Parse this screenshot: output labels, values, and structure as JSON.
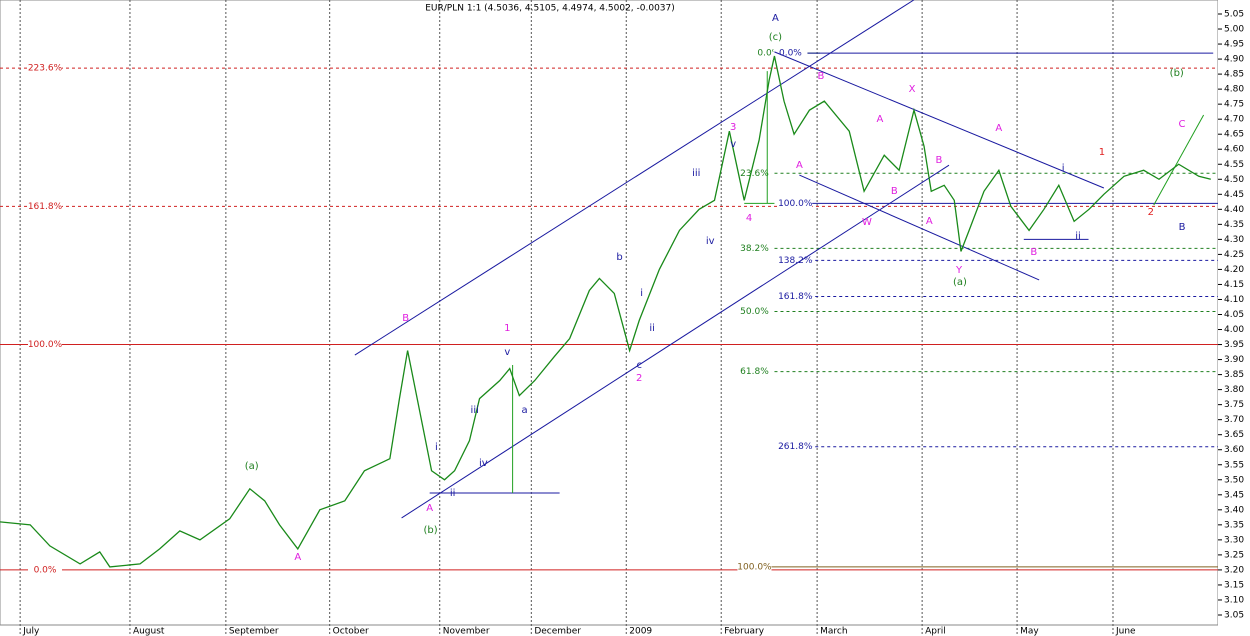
{
  "chart_data": {
    "type": "line",
    "title": "EUR/PLN 1:1 (4.5036, 4.5105, 4.4974, 4.5002, -0.0037)",
    "xlim": [
      0,
      254
    ],
    "ylim": [
      3.05,
      5.05
    ],
    "xticks": [
      {
        "value": 4.2,
        "label": "July"
      },
      {
        "value": 27.1,
        "label": "August"
      },
      {
        "value": 47.1,
        "label": "September"
      },
      {
        "value": 68.75,
        "label": "October"
      },
      {
        "value": 91.7,
        "label": "November"
      },
      {
        "value": 110.8,
        "label": "December"
      },
      {
        "value": 130.6,
        "label": "2009"
      },
      {
        "value": 150.4,
        "label": "February"
      },
      {
        "value": 170.4,
        "label": "March"
      },
      {
        "value": 192.3,
        "label": "April"
      },
      {
        "value": 212.1,
        "label": "May"
      },
      {
        "value": 232.1,
        "label": "June"
      }
    ],
    "yticks": [
      {
        "value": 3.05,
        "label": "3.05"
      },
      {
        "value": 3.1,
        "label": "3.10"
      },
      {
        "value": 3.15,
        "label": "3.15"
      },
      {
        "value": 3.2,
        "label": "3.20"
      },
      {
        "value": 3.25,
        "label": "3.25"
      },
      {
        "value": 3.3,
        "label": "3.30"
      },
      {
        "value": 3.35,
        "label": "3.35"
      },
      {
        "value": 3.4,
        "label": "3.40"
      },
      {
        "value": 3.45,
        "label": "3.45"
      },
      {
        "value": 3.5,
        "label": "3.50"
      },
      {
        "value": 3.55,
        "label": "3.55"
      },
      {
        "value": 3.6,
        "label": "3.60"
      },
      {
        "value": 3.65,
        "label": "3.65"
      },
      {
        "value": 3.7,
        "label": "3.70"
      },
      {
        "value": 3.75,
        "label": "3.75"
      },
      {
        "value": 3.8,
        "label": "3.80"
      },
      {
        "value": 3.85,
        "label": "3.85"
      },
      {
        "value": 3.9,
        "label": "3.90"
      },
      {
        "value": 3.95,
        "label": "3.95"
      },
      {
        "value": 4.0,
        "label": "4.00"
      },
      {
        "value": 4.05,
        "label": "4.05"
      },
      {
        "value": 4.1,
        "label": "4.10"
      },
      {
        "value": 4.15,
        "label": "4.15"
      },
      {
        "value": 4.2,
        "label": "4.20"
      },
      {
        "value": 4.25,
        "label": "4.25"
      },
      {
        "value": 4.3,
        "label": "4.30"
      },
      {
        "value": 4.35,
        "label": "4.35"
      },
      {
        "value": 4.4,
        "label": "4.40"
      },
      {
        "value": 4.45,
        "label": "4.45"
      },
      {
        "value": 4.5,
        "label": "4.50"
      },
      {
        "value": 4.55,
        "label": "4.55"
      },
      {
        "value": 4.6,
        "label": "4.60"
      },
      {
        "value": 4.65,
        "label": "4.65"
      },
      {
        "value": 4.7,
        "label": "4.70"
      },
      {
        "value": 4.75,
        "label": "4.75"
      },
      {
        "value": 4.8,
        "label": "4.80"
      },
      {
        "value": 4.85,
        "label": "4.85"
      },
      {
        "value": 4.9,
        "label": "4.90"
      },
      {
        "value": 4.95,
        "label": "4.95"
      },
      {
        "value": 5.0,
        "label": "5.00"
      },
      {
        "value": 5.05,
        "label": "5.05"
      }
    ],
    "x": [
      0,
      6.3,
      10.4,
      16.7,
      20.8,
      22.9,
      29.2,
      33.3,
      37.5,
      41.7,
      47.9,
      52.1,
      55.2,
      58.3,
      62.1,
      66.7,
      71.9,
      76,
      81.3,
      83.3,
      85,
      87.5,
      90,
      92.7,
      94.8,
      97.9,
      100,
      104.2,
      106.3,
      108.3,
      111.5,
      115.6,
      118.8,
      122.9,
      125,
      128.1,
      131.3,
      133.3,
      137.5,
      141.7,
      145.8,
      149,
      152.1,
      155.2,
      158.3,
      160.4,
      161.5,
      163.5,
      165.6,
      168.8,
      171.9,
      177.1,
      180.2,
      184.4,
      187.5,
      190.6,
      192.7,
      194.2,
      196.9,
      199,
      200.4,
      202.1,
      205.2,
      208.3,
      210.8,
      214.6,
      217.7,
      220.8,
      224,
      227.1,
      230.2,
      234.4,
      238.5,
      241.7,
      245.8,
      250,
      252.5
    ],
    "series": [
      {
        "color": "#1a8a1a",
        "values": [
          3.36,
          3.35,
          3.28,
          3.22,
          3.26,
          3.21,
          3.22,
          3.27,
          3.33,
          3.3,
          3.37,
          3.47,
          3.43,
          3.35,
          3.27,
          3.4,
          3.43,
          3.53,
          3.57,
          3.77,
          3.93,
          3.73,
          3.53,
          3.5,
          3.53,
          3.63,
          3.77,
          3.83,
          3.87,
          3.78,
          3.83,
          3.91,
          3.97,
          4.13,
          4.17,
          4.12,
          3.93,
          4.03,
          4.2,
          4.33,
          4.4,
          4.43,
          4.66,
          4.43,
          4.63,
          4.83,
          4.91,
          4.76,
          4.65,
          4.73,
          4.76,
          4.66,
          4.46,
          4.58,
          4.53,
          4.73,
          4.61,
          4.46,
          4.48,
          4.43,
          4.26,
          4.33,
          4.46,
          4.53,
          4.41,
          4.33,
          4.4,
          4.48,
          4.36,
          4.4,
          4.45,
          4.51,
          4.53,
          4.5,
          4.55,
          4.51,
          4.5
        ]
      }
    ],
    "levels": [
      {
        "label": "223.6%",
        "value": 4.87,
        "color": "#d02020",
        "dashed": true,
        "from": 0,
        "to": 254
      },
      {
        "label": "161.8%",
        "value": 4.41,
        "color": "#d02020",
        "dashed": true,
        "from": 0,
        "to": 254
      },
      {
        "label": "100.0%",
        "value": 3.95,
        "color": "#d02020",
        "dashed": false,
        "from": 0,
        "to": 254
      },
      {
        "label": "0.0%",
        "value": 3.2,
        "color": "#d02020",
        "dashed": false,
        "from": 0,
        "to": 254
      },
      {
        "label": "0.0%",
        "value": 4.92,
        "color": "#208020",
        "dashed": false,
        "from": 157,
        "to": 171
      },
      {
        "label": "23.6%",
        "value": 4.52,
        "color": "#208020",
        "dashed": true,
        "from": 154,
        "to": 254
      },
      {
        "label": "38.2%",
        "value": 4.27,
        "color": "#208020",
        "dashed": true,
        "from": 154,
        "to": 254
      },
      {
        "label": "50.0%",
        "value": 4.06,
        "color": "#208020",
        "dashed": true,
        "from": 154,
        "to": 254
      },
      {
        "label": "61.8%",
        "value": 3.86,
        "color": "#208020",
        "dashed": true,
        "from": 154,
        "to": 254
      },
      {
        "label": "100.0%",
        "value": 3.21,
        "color": "#806020",
        "dashed": false,
        "from": 154,
        "to": 254
      },
      {
        "label": "0.0%",
        "value": 4.92,
        "color": "#1a1aa0",
        "dashed": false,
        "from": 161.5,
        "to": 253
      },
      {
        "label": "100.0%",
        "value": 4.42,
        "color": "#1a1aa0",
        "dashed": false,
        "from": 162.5,
        "to": 254
      },
      {
        "label": "138.2%",
        "value": 4.23,
        "color": "#1a1aa0",
        "dashed": true,
        "from": 162.5,
        "to": 254
      },
      {
        "label": "161.8%",
        "value": 4.11,
        "color": "#1a1aa0",
        "dashed": true,
        "from": 162.5,
        "to": 254
      },
      {
        "label": "261.8%",
        "value": 3.61,
        "color": "#1a1aa0",
        "dashed": true,
        "from": 162.5,
        "to": 254
      }
    ],
    "trendlines": [
      {
        "x": [
          74,
          190.6
        ],
        "y": [
          3.915,
          5.097
        ],
        "color": "#1a1aa0"
      },
      {
        "x": [
          83.75,
          197.9
        ],
        "y": [
          3.373,
          4.547
        ],
        "color": "#1a1aa0"
      },
      {
        "x": [
          161.5,
          230.2
        ],
        "y": [
          4.924,
          4.471
        ],
        "color": "#1a1aa0"
      },
      {
        "x": [
          166.7,
          216.7
        ],
        "y": [
          4.514,
          4.165
        ],
        "color": "#1a1aa0"
      },
      {
        "x": [
          89.6,
          116.7
        ],
        "y": [
          3.456,
          3.456
        ],
        "color": "#1a1aa0"
      },
      {
        "x": [
          106.9,
          106.9
        ],
        "y": [
          3.882,
          3.456
        ],
        "color": "#20a020"
      },
      {
        "x": [
          213.5,
          227
        ],
        "y": [
          4.3,
          4.3
        ],
        "color": "#1a1aa0"
      },
      {
        "x": [
          240.6,
          251
        ],
        "y": [
          4.414,
          4.714
        ],
        "color": "#20a020"
      },
      {
        "x": [
          160,
          160
        ],
        "y": [
          4.42,
          4.86
        ],
        "color": "#20a020"
      },
      {
        "x": [
          155.2,
          161.5
        ],
        "y": [
          4.42,
          4.42
        ],
        "color": "#20a020"
      }
    ],
    "annotations": [
      {
        "text": "A",
        "x": 161.7,
        "y": 5.037,
        "color": "#1a1aa0"
      },
      {
        "text": "(c)",
        "x": 161.7,
        "y": 4.973,
        "color": "#208020"
      },
      {
        "text": "(a)",
        "x": 52.5,
        "y": 3.546,
        "color": "#208020"
      },
      {
        "text": "A",
        "x": 62.1,
        "y": 3.243,
        "color": "#e020e0"
      },
      {
        "text": "B",
        "x": 84.6,
        "y": 4.038,
        "color": "#e020e0"
      },
      {
        "text": "i",
        "x": 91,
        "y": 3.609,
        "color": "#1a1aa0"
      },
      {
        "text": "A",
        "x": 89.6,
        "y": 3.406,
        "color": "#e020e0"
      },
      {
        "text": "ii",
        "x": 94.4,
        "y": 3.456,
        "color": "#1a1aa0"
      },
      {
        "text": "(b)",
        "x": 89.8,
        "y": 3.333,
        "color": "#208020"
      },
      {
        "text": "iii",
        "x": 99,
        "y": 3.732,
        "color": "#1a1aa0"
      },
      {
        "text": "iv",
        "x": 100.8,
        "y": 3.556,
        "color": "#1a1aa0"
      },
      {
        "text": "v",
        "x": 105.8,
        "y": 3.925,
        "color": "#1a1aa0"
      },
      {
        "text": "1",
        "x": 105.8,
        "y": 4.005,
        "color": "#e020e0"
      },
      {
        "text": "a",
        "x": 109.4,
        "y": 3.732,
        "color": "#1a1aa0"
      },
      {
        "text": "b",
        "x": 129.2,
        "y": 4.241,
        "color": "#1a1aa0"
      },
      {
        "text": "i",
        "x": 133.8,
        "y": 4.121,
        "color": "#1a1aa0"
      },
      {
        "text": "ii",
        "x": 136,
        "y": 4.005,
        "color": "#1a1aa0"
      },
      {
        "text": "c",
        "x": 133.3,
        "y": 3.882,
        "color": "#1a1aa0"
      },
      {
        "text": "2",
        "x": 133.3,
        "y": 3.839,
        "color": "#e020e0"
      },
      {
        "text": "iii",
        "x": 145.2,
        "y": 4.521,
        "color": "#1a1aa0"
      },
      {
        "text": "iv",
        "x": 148.1,
        "y": 4.295,
        "color": "#1a1aa0"
      },
      {
        "text": "3",
        "x": 152.9,
        "y": 4.674,
        "color": "#e020e0"
      },
      {
        "text": "v",
        "x": 152.9,
        "y": 4.617,
        "color": "#1a1aa0"
      },
      {
        "text": "4",
        "x": 156.2,
        "y": 4.371,
        "color": "#e020e0"
      },
      {
        "text": "B",
        "x": 171.2,
        "y": 4.844,
        "color": "#e020e0"
      },
      {
        "text": "A",
        "x": 166.7,
        "y": 4.548,
        "color": "#e020e0"
      },
      {
        "text": "A",
        "x": 183.5,
        "y": 4.701,
        "color": "#e020e0"
      },
      {
        "text": "X",
        "x": 190.2,
        "y": 4.8,
        "color": "#e020e0"
      },
      {
        "text": "B",
        "x": 186.5,
        "y": 4.461,
        "color": "#e020e0"
      },
      {
        "text": "W",
        "x": 180.8,
        "y": 4.358,
        "color": "#e020e0"
      },
      {
        "text": "B",
        "x": 195.8,
        "y": 4.564,
        "color": "#e020e0"
      },
      {
        "text": "A",
        "x": 193.8,
        "y": 4.361,
        "color": "#e020e0"
      },
      {
        "text": "Y",
        "x": 200,
        "y": 4.198,
        "color": "#e020e0"
      },
      {
        "text": "(a)",
        "x": 200.2,
        "y": 4.158,
        "color": "#208020"
      },
      {
        "text": "A",
        "x": 208.3,
        "y": 4.671,
        "color": "#e020e0"
      },
      {
        "text": "B",
        "x": 215.6,
        "y": 4.258,
        "color": "#e020e0"
      },
      {
        "text": "i",
        "x": 221.7,
        "y": 4.538,
        "color": "#1a1aa0"
      },
      {
        "text": "ii",
        "x": 224.8,
        "y": 4.311,
        "color": "#1a1aa0"
      },
      {
        "text": "1",
        "x": 229.8,
        "y": 4.591,
        "color": "#e02020"
      },
      {
        "text": "2",
        "x": 240,
        "y": 4.391,
        "color": "#e02020"
      },
      {
        "text": "(b)",
        "x": 245.4,
        "y": 4.854,
        "color": "#208020"
      },
      {
        "text": "C",
        "x": 246.5,
        "y": 4.684,
        "color": "#e020e0"
      },
      {
        "text": "B",
        "x": 246.5,
        "y": 4.341,
        "color": "#1a1aa0"
      }
    ]
  }
}
